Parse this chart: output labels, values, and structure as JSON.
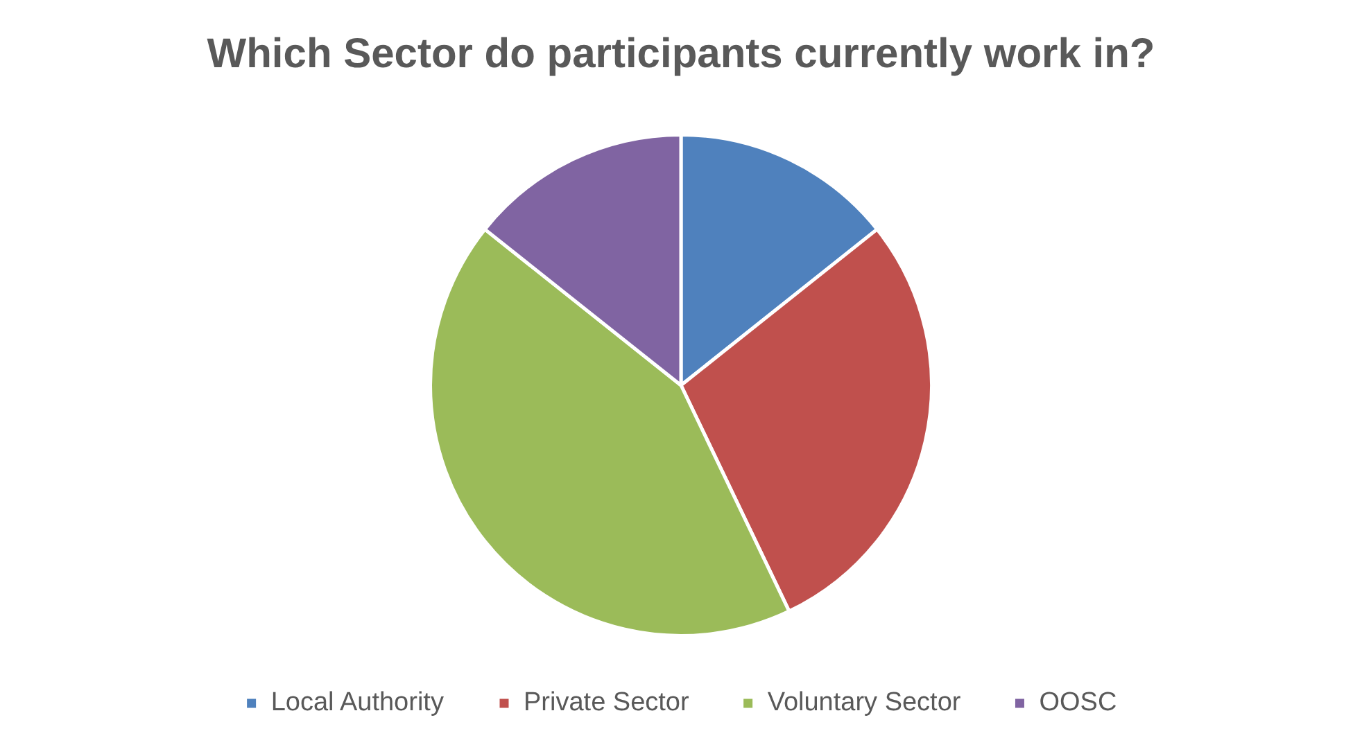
{
  "chart_data": {
    "type": "pie",
    "title": "Which Sector do participants currently work in?",
    "categories": [
      "Local Authority",
      "Private Sector",
      "Voluntary Sector",
      "OOSC"
    ],
    "values": [
      14.3,
      28.6,
      42.8,
      14.3
    ],
    "colors": [
      "#4f81bd",
      "#c0504d",
      "#9bbb59",
      "#8064a2"
    ],
    "legend": "bottom"
  }
}
